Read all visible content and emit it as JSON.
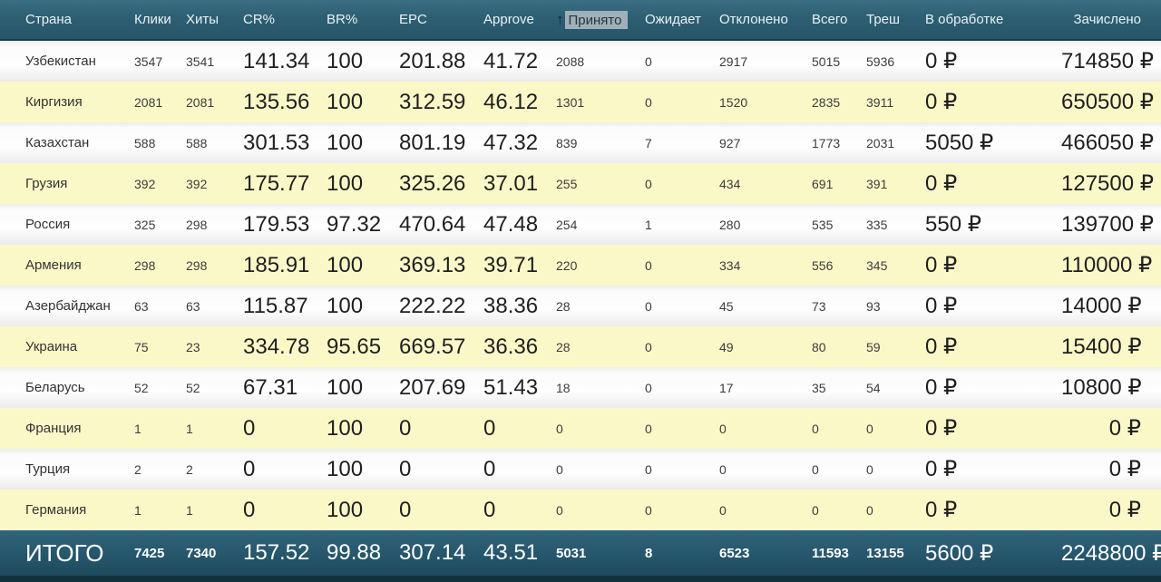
{
  "table": {
    "columns": [
      {
        "label": "Страна"
      },
      {
        "label": "Клики"
      },
      {
        "label": "Хиты"
      },
      {
        "label": "CR%"
      },
      {
        "label": "BR%"
      },
      {
        "label": "EPC"
      },
      {
        "label": "Approve"
      },
      {
        "label": "Принято",
        "sorted": true
      },
      {
        "label": "Ожидает"
      },
      {
        "label": "Отклонено"
      },
      {
        "label": "Всего"
      },
      {
        "label": "Треш"
      },
      {
        "label": "В обработке"
      },
      {
        "label": "Зачислено"
      }
    ],
    "sort": {
      "column": "Принято",
      "icon": "↑"
    },
    "rows": [
      [
        "Узбекистан",
        "3547",
        "3541",
        "141.34",
        "100",
        "201.88",
        "41.72",
        "2088",
        "0",
        "2917",
        "5015",
        "5936",
        "0 ₽",
        "714850 ₽"
      ],
      [
        "Киргизия",
        "2081",
        "2081",
        "135.56",
        "100",
        "312.59",
        "46.12",
        "1301",
        "0",
        "1520",
        "2835",
        "3911",
        "0 ₽",
        "650500 ₽"
      ],
      [
        "Казахстан",
        "588",
        "588",
        "301.53",
        "100",
        "801.19",
        "47.32",
        "839",
        "7",
        "927",
        "1773",
        "2031",
        "5050 ₽",
        "466050 ₽"
      ],
      [
        "Грузия",
        "392",
        "392",
        "175.77",
        "100",
        "325.26",
        "37.01",
        "255",
        "0",
        "434",
        "691",
        "391",
        "0 ₽",
        "127500 ₽"
      ],
      [
        "Россия",
        "325",
        "298",
        "179.53",
        "97.32",
        "470.64",
        "47.48",
        "254",
        "1",
        "280",
        "535",
        "335",
        "550 ₽",
        "139700 ₽"
      ],
      [
        "Армения",
        "298",
        "298",
        "185.91",
        "100",
        "369.13",
        "39.71",
        "220",
        "0",
        "334",
        "556",
        "345",
        "0 ₽",
        "110000 ₽"
      ],
      [
        "Азербайджан",
        "63",
        "63",
        "115.87",
        "100",
        "222.22",
        "38.36",
        "28",
        "0",
        "45",
        "73",
        "93",
        "0 ₽",
        "14000 ₽"
      ],
      [
        "Украина",
        "75",
        "23",
        "334.78",
        "95.65",
        "669.57",
        "36.36",
        "28",
        "0",
        "49",
        "80",
        "59",
        "0 ₽",
        "15400 ₽"
      ],
      [
        "Беларусь",
        "52",
        "52",
        "67.31",
        "100",
        "207.69",
        "51.43",
        "18",
        "0",
        "17",
        "35",
        "54",
        "0 ₽",
        "10800 ₽"
      ],
      [
        "Франция",
        "1",
        "1",
        "0",
        "100",
        "0",
        "0",
        "0",
        "0",
        "0",
        "0",
        "0",
        "0 ₽",
        "0 ₽"
      ],
      [
        "Турция",
        "2",
        "2",
        "0",
        "100",
        "0",
        "0",
        "0",
        "0",
        "0",
        "0",
        "0",
        "0 ₽",
        "0 ₽"
      ],
      [
        "Германия",
        "1",
        "1",
        "0",
        "100",
        "0",
        "0",
        "0",
        "0",
        "0",
        "0",
        "0",
        "0 ₽",
        "0 ₽"
      ]
    ],
    "footer": [
      "ИТОГО",
      "7425",
      "7340",
      "157.52",
      "99.88",
      "307.14",
      "43.51",
      "5031",
      "8",
      "6523",
      "11593",
      "13155",
      "5600 ₽",
      "2248800 ₽"
    ]
  },
  "colors": {
    "header_bg": "#2d5f73",
    "footer_bg": "#25556a",
    "row_alt_yellow": "#fbf8c8",
    "sort_highlight": "#9fb0b8",
    "currency_symbol": "₽"
  }
}
